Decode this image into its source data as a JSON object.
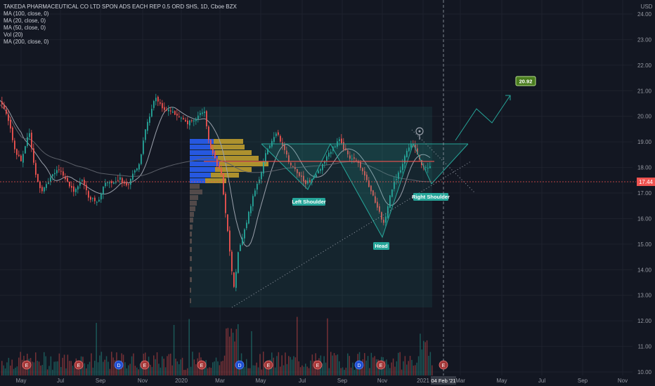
{
  "header": {
    "title": "TAKEDA PHARMACEUTICAL CO LTD SPON ADS EACH REP 0.5 ORD SHS, 1D, Cboe BZX",
    "indicators": [
      "MA (100, close, 0)",
      "MA (20, close, 0)",
      "MA (50, close, 0)",
      "Vol (20)",
      "MA (200, close, 0)"
    ]
  },
  "currency": "USD",
  "price_tag": "17.44",
  "target_tag": "20.92",
  "crosshair_date": "04 Feb '21",
  "colors": {
    "background": "#131722",
    "up": "#26a69a",
    "down": "#ef5350",
    "pattern": "#26a69a",
    "target_label": "#4a7c1f",
    "vp_up": "#2962ff",
    "vp_down": "#c8a42e",
    "price_line": "#ef5350"
  },
  "chart_data": {
    "type": "candlestick",
    "y_axis_ticks": [
      "24.00",
      "23.00",
      "22.00",
      "21.00",
      "20.00",
      "19.00",
      "18.00",
      "17.00",
      "16.00",
      "15.00",
      "14.00",
      "13.00",
      "12.00",
      "11.00",
      "10.00"
    ],
    "x_axis_ticks": [
      "May",
      "Jul",
      "Sep",
      "Nov",
      "2020",
      "Mar",
      "May",
      "Jul",
      "Sep",
      "Nov",
      "2021",
      "Mar",
      "May",
      "Jul",
      "Sep",
      "Nov"
    ],
    "pattern_labels": [
      "Left Shoulder",
      "Head",
      "Right Shoulder"
    ],
    "events": [
      "E",
      "E",
      "E",
      "D",
      "E",
      "E",
      "E",
      "D",
      "E",
      "E",
      "E",
      "D",
      "E",
      "E"
    ],
    "current_price": 17.44,
    "target_price": 20.92
  }
}
